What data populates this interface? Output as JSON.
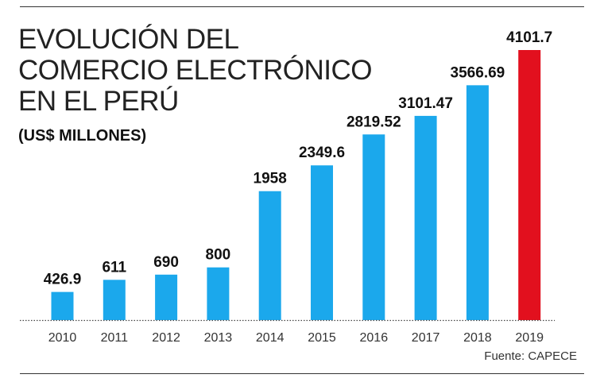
{
  "chart_data": {
    "type": "bar",
    "title": [
      "EVOLUCIÓN DEL",
      "COMERCIO ELECTRÓNICO",
      "EN EL PERÚ"
    ],
    "subtitle": "(US$ MILLONES)",
    "categories": [
      "2010",
      "2011",
      "2012",
      "2013",
      "2014",
      "2015",
      "2016",
      "2017",
      "2018",
      "2019"
    ],
    "values": [
      426.9,
      611,
      690,
      800,
      1958,
      2349.6,
      2819.52,
      3101.47,
      3566.69,
      4101.7
    ],
    "labels": [
      "426.9",
      "611",
      "690",
      "800",
      "1958",
      "2349.6",
      "2819.52",
      "3101.47",
      "3566.69",
      "4101.7"
    ],
    "highlight_index": 9,
    "colors": {
      "bar": "#1ba8ec",
      "highlight": "#e2101e"
    },
    "ylim": [
      0,
      4101.7
    ],
    "xlabel": "",
    "ylabel": "",
    "grid": false,
    "source": "Fuente: CAPECE"
  }
}
